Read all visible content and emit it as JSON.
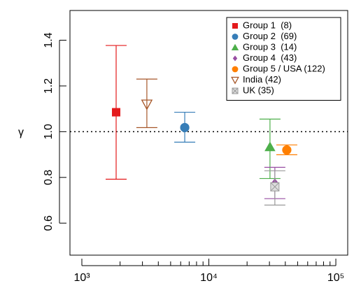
{
  "chart_data": {
    "type": "scatter",
    "y_label": "γ",
    "xlog": true,
    "xlim": [
      806,
      124000
    ],
    "ylim": [
      0.46,
      1.53
    ],
    "xticks": [
      {
        "value": 1000,
        "label": "10³"
      },
      {
        "value": 10000,
        "label": "10⁴"
      },
      {
        "value": 100000,
        "label": "10⁵"
      }
    ],
    "xminorticks": [
      2000,
      3000,
      4000,
      5000,
      6000,
      7000,
      8000,
      9000,
      20000,
      30000,
      40000,
      50000,
      60000,
      70000,
      80000,
      90000
    ],
    "yticks": [
      0.6,
      0.8,
      {
        "value": 1,
        "label": "1.0"
      },
      1.2,
      1.4
    ],
    "hline": 1,
    "legend": "top-right",
    "series": [
      {
        "name": "Group 1  (8)",
        "color": "#e41a1c",
        "marker": "square",
        "x": [
          1862
        ],
        "values": [
          1.085
        ],
        "lower": [
          0.792
        ],
        "upper": [
          1.377
        ]
      },
      {
        "name": "Group 2  (69)",
        "color": "#377eb8",
        "marker": "circle",
        "x": [
          6460
        ],
        "values": [
          1.018
        ],
        "lower": [
          0.954
        ],
        "upper": [
          1.085
        ]
      },
      {
        "name": "Group 3  (14)",
        "color": "#4daf4a",
        "marker": "triangle",
        "x": [
          30300
        ],
        "values": [
          0.933
        ],
        "lower": [
          0.795
        ],
        "upper": [
          1.055
        ]
      },
      {
        "name": "Group 4  (43)",
        "color": "#984ea3",
        "marker": "diamond",
        "x": [
          33100
        ],
        "values": [
          0.777
        ],
        "lower": [
          0.707
        ],
        "upper": [
          0.844
        ]
      },
      {
        "name": "Group 5 / USA (122)",
        "color": "#ff7f00",
        "marker": "circle",
        "x": [
          41100
        ],
        "values": [
          0.92
        ],
        "lower": [
          0.899
        ],
        "upper": [
          0.942
        ]
      },
      {
        "name": "India (42)",
        "color": "#a65628",
        "marker": "open-triangle-down",
        "x": [
          3250
        ],
        "values": [
          1.12
        ],
        "lower": [
          1.018
        ],
        "upper": [
          1.23
        ]
      },
      {
        "name": "UK (35)",
        "color": "#999999",
        "marker": "square-x",
        "x": [
          33100
        ],
        "values": [
          0.759
        ],
        "lower": [
          0.679
        ],
        "upper": [
          0.829
        ]
      }
    ]
  }
}
